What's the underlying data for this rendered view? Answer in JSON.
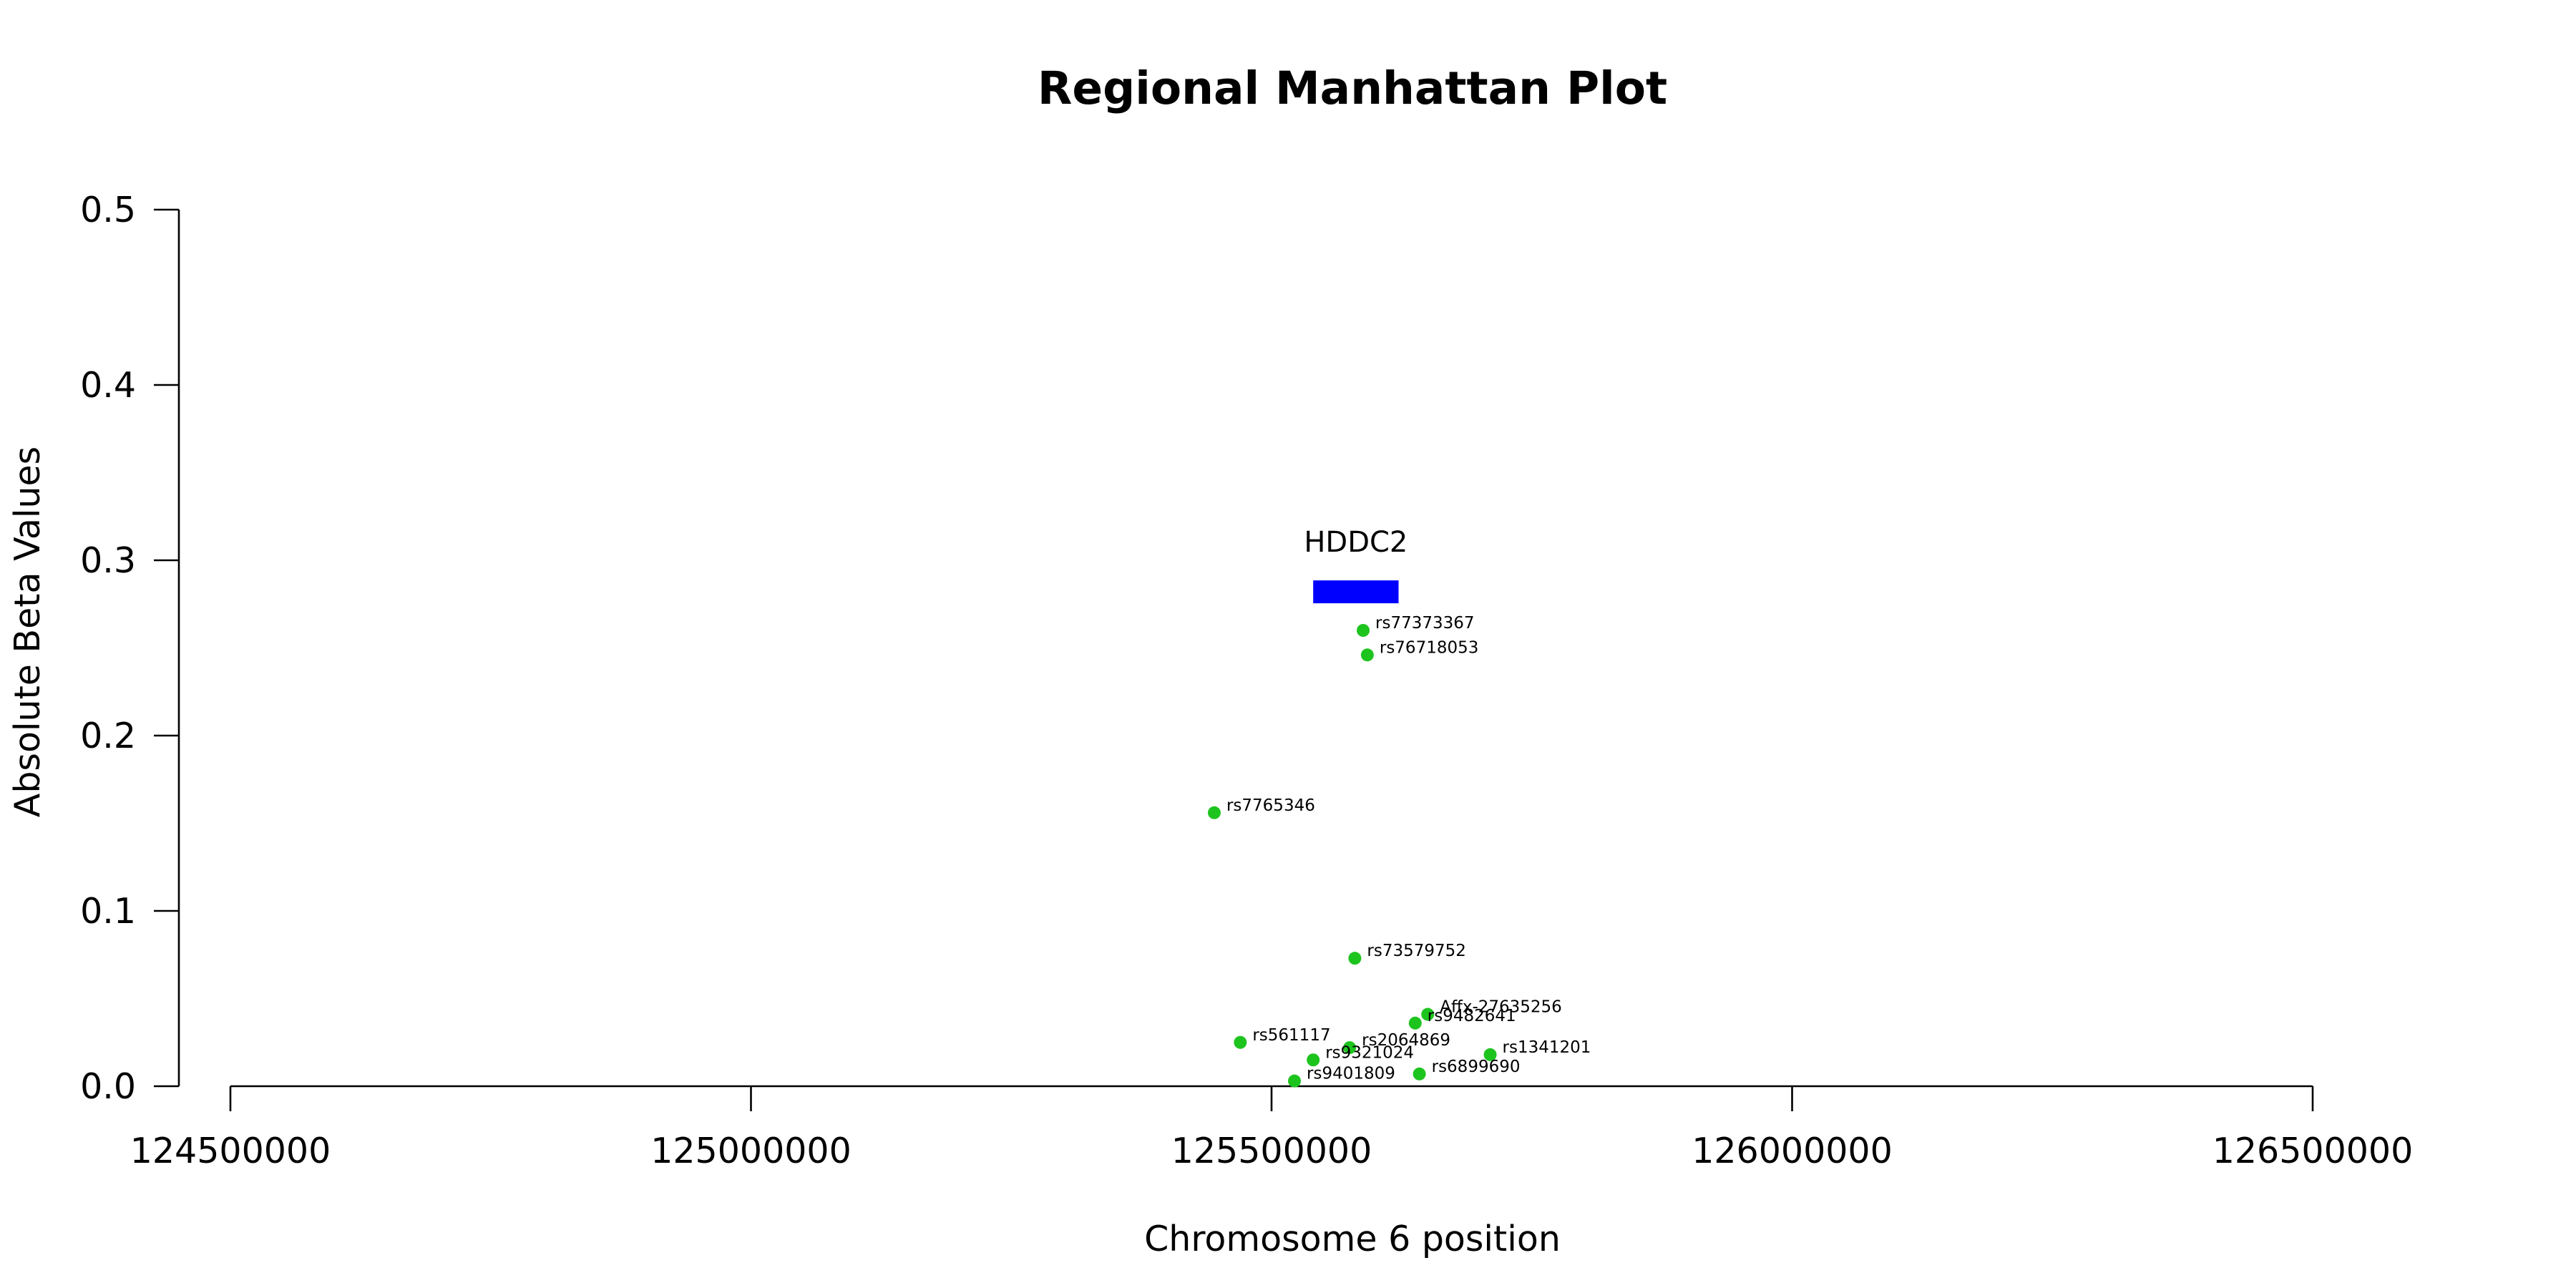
{
  "chart_data": {
    "type": "scatter",
    "title": "Regional Manhattan Plot",
    "xlabel": "Chromosome 6 position",
    "ylabel": "Absolute Beta Values",
    "xlim": [
      124500000,
      126500000
    ],
    "ylim": [
      0,
      0.5
    ],
    "x_ticks": [
      "124500000",
      "125000000",
      "125500000",
      "126000000",
      "126500000"
    ],
    "y_ticks": [
      "0.0",
      "0.1",
      "0.2",
      "0.3",
      "0.4",
      "0.5"
    ],
    "grid": false,
    "point_color": "#1ec41e",
    "gene": {
      "name": "HDDC2",
      "start": 125540000,
      "end": 125622000,
      "y": 0.282,
      "color": "#0000ff"
    },
    "points": [
      {
        "label": "rs77373367",
        "x": 125588000,
        "y": 0.26
      },
      {
        "label": "rs76718053",
        "x": 125592000,
        "y": 0.246
      },
      {
        "label": "rs7765346",
        "x": 125445000,
        "y": 0.156
      },
      {
        "label": "rs73579752",
        "x": 125580000,
        "y": 0.073
      },
      {
        "label": "Affx-27635256",
        "x": 125650000,
        "y": 0.041
      },
      {
        "label": "rs9482641",
        "x": 125638000,
        "y": 0.036
      },
      {
        "label": "rs561117",
        "x": 125470000,
        "y": 0.025
      },
      {
        "label": "rs2064869",
        "x": 125575000,
        "y": 0.022
      },
      {
        "label": "rs1341201",
        "x": 125710000,
        "y": 0.018
      },
      {
        "label": "rs9321024",
        "x": 125540000,
        "y": 0.015
      },
      {
        "label": "rs6899690",
        "x": 125642000,
        "y": 0.007
      },
      {
        "label": "rs9401809",
        "x": 125522000,
        "y": 0.003
      }
    ]
  }
}
